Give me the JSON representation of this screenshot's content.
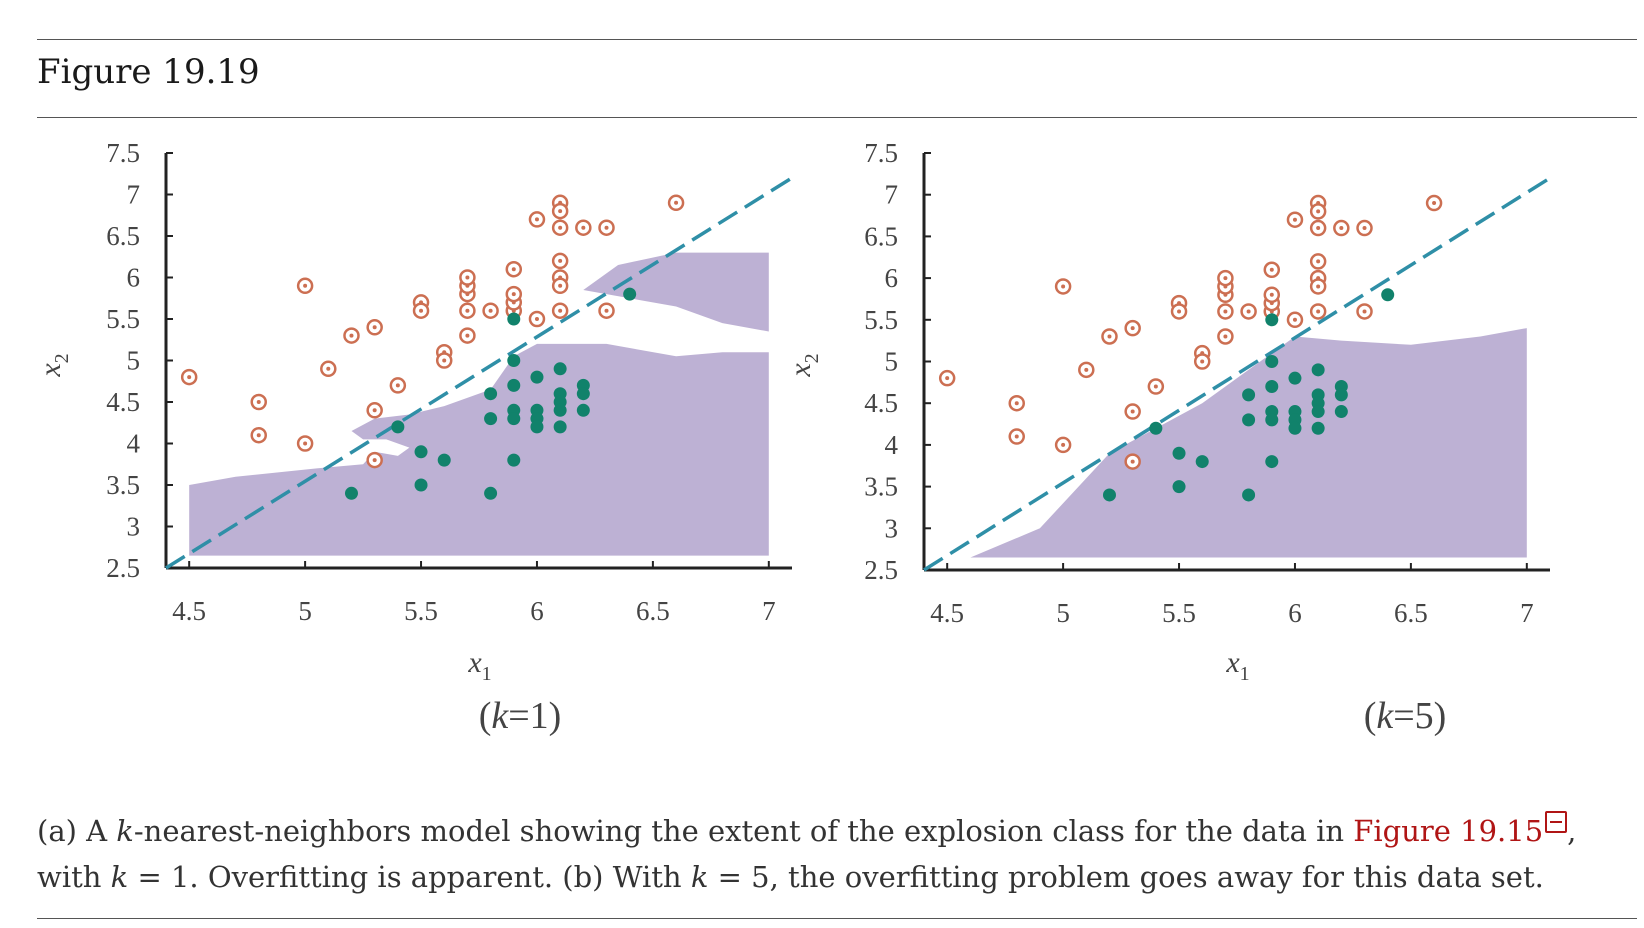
{
  "figure": {
    "title": "Figure 19.19",
    "caption": {
      "t1": "(a) A ",
      "k": "k",
      "t2": "-nearest-neighbors model showing the extent of the explosion class for the data in ",
      "link": "Figure 19.15",
      "t3": ",",
      "t4": "with ",
      "t5": " = 1. Overfitting is apparent. (b) With ",
      "t6": " = 5, the overfitting problem goes away for this data set."
    }
  },
  "colors": {
    "earthquake": "#cc6f52",
    "explosion": "#11826b",
    "region": "#bdb1d4",
    "boundary": "#2f8fa7",
    "axis": "#222222"
  },
  "chart_data": [
    {
      "type": "scatter",
      "panel_label": "(k=1)",
      "xlabel": "x1",
      "ylabel": "x2",
      "xlim": [
        4.4,
        7.1
      ],
      "ylim": [
        2.5,
        7.5
      ],
      "xticks": [
        "4.5",
        "5",
        "5.5",
        "6",
        "6.5",
        "7"
      ],
      "yticks": [
        "2.5",
        "3",
        "3.5",
        "4",
        "4.5",
        "5",
        "5.5",
        "6",
        "6.5",
        "7",
        "7.5"
      ],
      "linear_boundary": [
        [
          4.4,
          2.5
        ],
        [
          7.1,
          7.2
        ]
      ],
      "explosion_region": [
        [
          [
            4.5,
            3.5
          ],
          [
            4.7,
            3.6
          ],
          [
            5.05,
            3.7
          ],
          [
            5.25,
            3.75
          ],
          [
            5.3,
            3.9
          ],
          [
            5.4,
            3.85
          ],
          [
            5.45,
            3.95
          ],
          [
            5.35,
            4.05
          ],
          [
            5.25,
            4.05
          ],
          [
            5.2,
            4.15
          ],
          [
            5.3,
            4.3
          ],
          [
            5.45,
            4.35
          ],
          [
            5.6,
            4.45
          ],
          [
            5.8,
            4.65
          ],
          [
            5.9,
            5.05
          ],
          [
            6.0,
            5.2
          ],
          [
            6.3,
            5.2
          ],
          [
            6.6,
            5.05
          ],
          [
            6.8,
            5.1
          ],
          [
            7.0,
            5.1
          ],
          [
            7.0,
            2.65
          ],
          [
            4.5,
            2.65
          ]
        ],
        [
          [
            6.2,
            5.85
          ],
          [
            6.35,
            6.15
          ],
          [
            6.6,
            6.3
          ],
          [
            7.0,
            6.3
          ],
          [
            7.0,
            5.35
          ],
          [
            6.8,
            5.45
          ],
          [
            6.6,
            5.65
          ],
          [
            6.4,
            5.75
          ]
        ]
      ],
      "series": [
        {
          "name": "",
          "class": "earthquake",
          "points": [
            [
              4.5,
              4.8
            ],
            [
              4.8,
              4.5
            ],
            [
              4.8,
              4.1
            ],
            [
              5.0,
              5.9
            ],
            [
              5.0,
              4.0
            ],
            [
              5.1,
              4.9
            ],
            [
              5.2,
              5.3
            ],
            [
              5.3,
              5.4
            ],
            [
              5.3,
              4.4
            ],
            [
              5.3,
              3.8
            ],
            [
              5.4,
              4.7
            ],
            [
              5.5,
              5.7
            ],
            [
              5.5,
              5.6
            ],
            [
              5.6,
              5.1
            ],
            [
              5.6,
              5.0
            ],
            [
              5.7,
              5.3
            ],
            [
              5.7,
              5.6
            ],
            [
              5.7,
              5.8
            ],
            [
              5.7,
              5.9
            ],
            [
              5.7,
              6.0
            ],
            [
              5.8,
              5.6
            ],
            [
              5.9,
              5.6
            ],
            [
              5.9,
              5.7
            ],
            [
              5.9,
              5.8
            ],
            [
              5.9,
              6.1
            ],
            [
              6.0,
              5.5
            ],
            [
              6.0,
              6.7
            ],
            [
              6.1,
              6.9
            ],
            [
              6.1,
              6.8
            ],
            [
              6.1,
              6.6
            ],
            [
              6.1,
              6.2
            ],
            [
              6.1,
              6.0
            ],
            [
              6.1,
              5.9
            ],
            [
              6.1,
              5.6
            ],
            [
              6.2,
              6.6
            ],
            [
              6.3,
              6.6
            ],
            [
              6.3,
              5.6
            ],
            [
              6.6,
              6.9
            ]
          ]
        },
        {
          "name": "",
          "class": "explosion",
          "points": [
            [
              5.2,
              3.4
            ],
            [
              5.4,
              4.2
            ],
            [
              5.5,
              3.9
            ],
            [
              5.5,
              3.5
            ],
            [
              5.6,
              3.8
            ],
            [
              5.8,
              4.6
            ],
            [
              5.8,
              4.3
            ],
            [
              5.8,
              3.4
            ],
            [
              5.9,
              5.5
            ],
            [
              5.9,
              5.0
            ],
            [
              5.9,
              4.7
            ],
            [
              5.9,
              4.4
            ],
            [
              5.9,
              4.3
            ],
            [
              5.9,
              3.8
            ],
            [
              6.0,
              4.8
            ],
            [
              6.0,
              4.4
            ],
            [
              6.0,
              4.3
            ],
            [
              6.0,
              4.2
            ],
            [
              6.1,
              4.9
            ],
            [
              6.1,
              4.6
            ],
            [
              6.1,
              4.5
            ],
            [
              6.1,
              4.4
            ],
            [
              6.1,
              4.2
            ],
            [
              6.2,
              4.7
            ],
            [
              6.2,
              4.6
            ],
            [
              6.2,
              4.4
            ],
            [
              6.4,
              5.8
            ]
          ]
        }
      ]
    },
    {
      "type": "scatter",
      "panel_label": "(k=5)",
      "xlabel": "x1",
      "ylabel": "x2",
      "xlim": [
        4.4,
        7.1
      ],
      "ylim": [
        2.5,
        7.5
      ],
      "xticks": [
        "4.5",
        "5",
        "5.5",
        "6",
        "6.5",
        "7"
      ],
      "yticks": [
        "2.5",
        "3",
        "3.5",
        "4",
        "4.5",
        "5",
        "5.5",
        "6",
        "6.5",
        "7",
        "7.5"
      ],
      "linear_boundary": [
        [
          4.4,
          2.5
        ],
        [
          7.1,
          7.2
        ]
      ],
      "explosion_region": [
        [
          [
            4.6,
            2.65
          ],
          [
            4.9,
            3.0
          ],
          [
            5.2,
            3.9
          ],
          [
            5.4,
            4.2
          ],
          [
            5.6,
            4.5
          ],
          [
            5.8,
            4.9
          ],
          [
            6.0,
            5.3
          ],
          [
            6.2,
            5.25
          ],
          [
            6.5,
            5.2
          ],
          [
            6.8,
            5.3
          ],
          [
            7.0,
            5.4
          ],
          [
            7.0,
            2.65
          ]
        ]
      ],
      "series": [
        {
          "name": "",
          "class": "earthquake",
          "points": [
            [
              4.5,
              4.8
            ],
            [
              4.8,
              4.5
            ],
            [
              4.8,
              4.1
            ],
            [
              5.0,
              5.9
            ],
            [
              5.0,
              4.0
            ],
            [
              5.1,
              4.9
            ],
            [
              5.2,
              5.3
            ],
            [
              5.3,
              5.4
            ],
            [
              5.3,
              4.4
            ],
            [
              5.3,
              3.8
            ],
            [
              5.4,
              4.7
            ],
            [
              5.5,
              5.7
            ],
            [
              5.5,
              5.6
            ],
            [
              5.6,
              5.1
            ],
            [
              5.6,
              5.0
            ],
            [
              5.7,
              5.3
            ],
            [
              5.7,
              5.6
            ],
            [
              5.7,
              5.8
            ],
            [
              5.7,
              5.9
            ],
            [
              5.7,
              6.0
            ],
            [
              5.8,
              5.6
            ],
            [
              5.9,
              5.6
            ],
            [
              5.9,
              5.7
            ],
            [
              5.9,
              5.8
            ],
            [
              5.9,
              6.1
            ],
            [
              6.0,
              5.5
            ],
            [
              6.0,
              6.7
            ],
            [
              6.1,
              6.9
            ],
            [
              6.1,
              6.8
            ],
            [
              6.1,
              6.6
            ],
            [
              6.1,
              6.2
            ],
            [
              6.1,
              6.0
            ],
            [
              6.1,
              5.9
            ],
            [
              6.1,
              5.6
            ],
            [
              6.2,
              6.6
            ],
            [
              6.3,
              6.6
            ],
            [
              6.3,
              5.6
            ],
            [
              6.6,
              6.9
            ]
          ]
        },
        {
          "name": "",
          "class": "explosion",
          "points": [
            [
              5.2,
              3.4
            ],
            [
              5.4,
              4.2
            ],
            [
              5.5,
              3.9
            ],
            [
              5.5,
              3.5
            ],
            [
              5.6,
              3.8
            ],
            [
              5.8,
              4.6
            ],
            [
              5.8,
              4.3
            ],
            [
              5.8,
              3.4
            ],
            [
              5.9,
              5.5
            ],
            [
              5.9,
              5.0
            ],
            [
              5.9,
              4.7
            ],
            [
              5.9,
              4.4
            ],
            [
              5.9,
              4.3
            ],
            [
              5.9,
              3.8
            ],
            [
              6.0,
              4.8
            ],
            [
              6.0,
              4.4
            ],
            [
              6.0,
              4.3
            ],
            [
              6.0,
              4.2
            ],
            [
              6.1,
              4.9
            ],
            [
              6.1,
              4.6
            ],
            [
              6.1,
              4.5
            ],
            [
              6.1,
              4.4
            ],
            [
              6.1,
              4.2
            ],
            [
              6.2,
              4.7
            ],
            [
              6.2,
              4.6
            ],
            [
              6.2,
              4.4
            ],
            [
              6.4,
              5.8
            ]
          ]
        }
      ]
    }
  ]
}
